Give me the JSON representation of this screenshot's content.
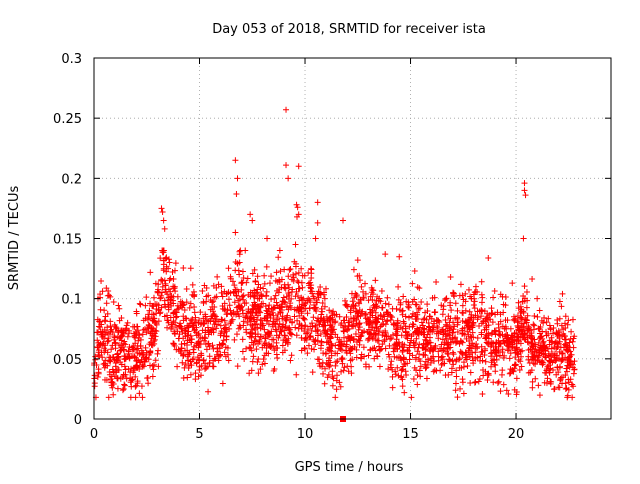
{
  "chart_data": {
    "type": "scatter",
    "title": "Day 053 of 2018, SRMTID for receiver ista",
    "xlabel": "GPS time / hours",
    "ylabel": "SRMTID / TECUs",
    "xlim": [
      0,
      24.5
    ],
    "ylim": [
      0,
      0.3
    ],
    "x_ticks": [
      0,
      5,
      10,
      15,
      20
    ],
    "x_tick_labels": [
      "0",
      "5",
      "10",
      "15",
      "20"
    ],
    "y_ticks": [
      0,
      0.05,
      0.1,
      0.15,
      0.2,
      0.25,
      0.3
    ],
    "y_tick_labels": [
      "0",
      "0.05",
      "0.1",
      "0.15",
      "0.2",
      "0.25",
      "0.3"
    ],
    "grid": true,
    "marker": "plus",
    "color": "#ff0000",
    "zero_marker": {
      "x": 11.8,
      "y": 0.0,
      "marker": "square"
    },
    "time_range_hours": [
      0,
      22.8
    ],
    "typical_level": 0.06,
    "notable_points": [
      {
        "x": 9.1,
        "y": 0.257
      },
      {
        "x": 6.7,
        "y": 0.215
      },
      {
        "x": 6.8,
        "y": 0.2
      },
      {
        "x": 9.1,
        "y": 0.211
      },
      {
        "x": 9.7,
        "y": 0.21
      },
      {
        "x": 9.2,
        "y": 0.2
      },
      {
        "x": 20.4,
        "y": 0.196
      },
      {
        "x": 20.4,
        "y": 0.19
      },
      {
        "x": 20.45,
        "y": 0.186
      },
      {
        "x": 6.75,
        "y": 0.187
      },
      {
        "x": 9.6,
        "y": 0.178
      },
      {
        "x": 9.65,
        "y": 0.176
      },
      {
        "x": 9.7,
        "y": 0.17
      },
      {
        "x": 9.62,
        "y": 0.168
      },
      {
        "x": 3.2,
        "y": 0.175
      },
      {
        "x": 3.25,
        "y": 0.172
      },
      {
        "x": 3.3,
        "y": 0.165
      },
      {
        "x": 3.35,
        "y": 0.158
      },
      {
        "x": 7.4,
        "y": 0.17
      },
      {
        "x": 7.5,
        "y": 0.165
      },
      {
        "x": 10.6,
        "y": 0.18
      },
      {
        "x": 10.6,
        "y": 0.163
      },
      {
        "x": 11.8,
        "y": 0.165
      },
      {
        "x": 20.35,
        "y": 0.15
      },
      {
        "x": 9.55,
        "y": 0.145
      },
      {
        "x": 10.5,
        "y": 0.15
      },
      {
        "x": 6.7,
        "y": 0.155
      },
      {
        "x": 8.2,
        "y": 0.15
      },
      {
        "x": 13.8,
        "y": 0.137
      },
      {
        "x": 12.5,
        "y": 0.132
      },
      {
        "x": 15.2,
        "y": 0.123
      },
      {
        "x": 16.9,
        "y": 0.118
      },
      {
        "x": 18.1,
        "y": 0.11
      },
      {
        "x": 21.0,
        "y": 0.1
      },
      {
        "x": 22.2,
        "y": 0.104
      }
    ],
    "series_profile": [
      {
        "x": 0.0,
        "y": 0.04
      },
      {
        "x": 0.3,
        "y": 0.075
      },
      {
        "x": 0.6,
        "y": 0.06
      },
      {
        "x": 1.0,
        "y": 0.05
      },
      {
        "x": 1.5,
        "y": 0.055
      },
      {
        "x": 2.0,
        "y": 0.058
      },
      {
        "x": 2.5,
        "y": 0.06
      },
      {
        "x": 3.0,
        "y": 0.08
      },
      {
        "x": 3.3,
        "y": 0.12
      },
      {
        "x": 3.6,
        "y": 0.1
      },
      {
        "x": 4.0,
        "y": 0.075
      },
      {
        "x": 4.5,
        "y": 0.068
      },
      {
        "x": 5.0,
        "y": 0.07
      },
      {
        "x": 5.5,
        "y": 0.07
      },
      {
        "x": 6.0,
        "y": 0.075
      },
      {
        "x": 6.5,
        "y": 0.09
      },
      {
        "x": 7.0,
        "y": 0.095
      },
      {
        "x": 7.5,
        "y": 0.085
      },
      {
        "x": 8.0,
        "y": 0.08
      },
      {
        "x": 8.5,
        "y": 0.08
      },
      {
        "x": 9.0,
        "y": 0.085
      },
      {
        "x": 9.5,
        "y": 0.095
      },
      {
        "x": 10.0,
        "y": 0.09
      },
      {
        "x": 10.5,
        "y": 0.085
      },
      {
        "x": 11.0,
        "y": 0.065
      },
      {
        "x": 11.5,
        "y": 0.06
      },
      {
        "x": 12.0,
        "y": 0.07
      },
      {
        "x": 12.5,
        "y": 0.08
      },
      {
        "x": 13.0,
        "y": 0.078
      },
      {
        "x": 13.5,
        "y": 0.08
      },
      {
        "x": 14.0,
        "y": 0.07
      },
      {
        "x": 14.5,
        "y": 0.065
      },
      {
        "x": 15.0,
        "y": 0.068
      },
      {
        "x": 15.5,
        "y": 0.065
      },
      {
        "x": 16.0,
        "y": 0.065
      },
      {
        "x": 16.5,
        "y": 0.063
      },
      {
        "x": 17.0,
        "y": 0.065
      },
      {
        "x": 17.5,
        "y": 0.06
      },
      {
        "x": 18.0,
        "y": 0.07
      },
      {
        "x": 18.5,
        "y": 0.065
      },
      {
        "x": 19.0,
        "y": 0.06
      },
      {
        "x": 19.5,
        "y": 0.06
      },
      {
        "x": 20.0,
        "y": 0.06
      },
      {
        "x": 20.4,
        "y": 0.075
      },
      {
        "x": 21.0,
        "y": 0.058
      },
      {
        "x": 21.5,
        "y": 0.058
      },
      {
        "x": 22.0,
        "y": 0.055
      },
      {
        "x": 22.5,
        "y": 0.055
      },
      {
        "x": 22.8,
        "y": 0.05
      }
    ],
    "series_spread": 0.018,
    "points_per_hour": 120,
    "random_seed": 53
  }
}
